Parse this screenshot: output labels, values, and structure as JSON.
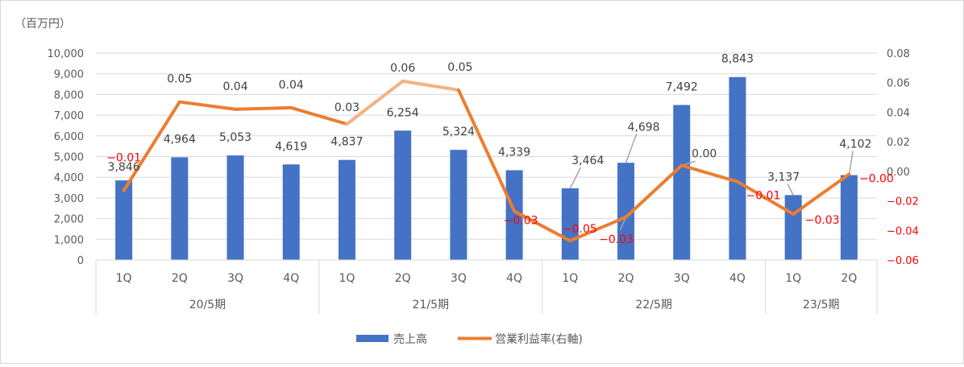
{
  "chart_data": {
    "type": "bar+line",
    "unit_label": "（百万円）",
    "y_left": {
      "min": 0,
      "max": 10000,
      "step": 1000,
      "ticks": [
        "0",
        "1,000",
        "2,000",
        "3,000",
        "4,000",
        "5,000",
        "6,000",
        "7,000",
        "8,000",
        "9,000",
        "10,000"
      ]
    },
    "y_right": {
      "min": -0.06,
      "max": 0.08,
      "step": 0.02,
      "ticks": [
        "-0.06",
        "-0.04",
        "-0.02",
        "0.00",
        "0.02",
        "0.04",
        "0.06",
        "0.08"
      ]
    },
    "groups": [
      {
        "label": "20/5期",
        "quarters": [
          "1Q",
          "2Q",
          "3Q",
          "4Q"
        ]
      },
      {
        "label": "21/5期",
        "quarters": [
          "1Q",
          "2Q",
          "3Q",
          "4Q"
        ]
      },
      {
        "label": "22/5期",
        "quarters": [
          "1Q",
          "2Q",
          "3Q",
          "4Q"
        ]
      },
      {
        "label": "23/5期",
        "quarters": [
          "1Q",
          "2Q"
        ]
      }
    ],
    "sales": {
      "name": "売上高",
      "color": "#4472C4",
      "values": [
        3846,
        4964,
        5053,
        4619,
        4837,
        6254,
        5324,
        4339,
        3464,
        4698,
        7492,
        8843,
        3137,
        4102
      ],
      "labels": [
        "3,846",
        "4,964",
        "5,053",
        "4,619",
        "4,837",
        "6,254",
        "5,324",
        "4,339",
        "3,464",
        "4,698",
        "7,492",
        "8,843",
        "3,137",
        "4,102"
      ]
    },
    "margin": {
      "name": "営業利益率(右軸)",
      "color": "#ED7D31",
      "highlight_color": "#F4B183",
      "values": [
        -0.013,
        0.047,
        0.042,
        0.043,
        0.032,
        0.061,
        0.055,
        -0.027,
        -0.047,
        -0.031,
        0.004,
        -0.007,
        -0.029,
        -0.002
      ],
      "labels": [
        "-0.01",
        "0.05",
        "0.04",
        "0.04",
        "0.03",
        "0.06",
        "0.05",
        "-0.03",
        "-0.05",
        "-0.03",
        "0.00",
        "-0.01",
        "-0.03",
        "-0.00"
      ]
    }
  }
}
